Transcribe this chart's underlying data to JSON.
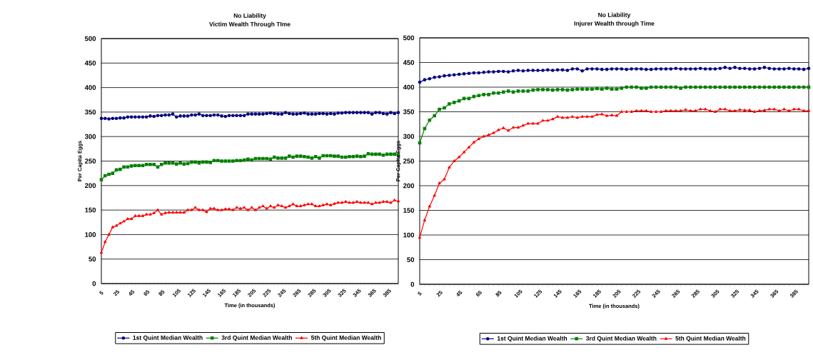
{
  "chart_data": [
    {
      "type": "line",
      "title": "No Liability",
      "subtitle": "Victim Wealth Through TIme",
      "xlabel": "Time (in thousands)",
      "ylabel": "Per Capita Eggs",
      "categories": [
        "5",
        null,
        null,
        null,
        "25",
        null,
        null,
        null,
        "45",
        null,
        null,
        null,
        "65",
        null,
        null,
        null,
        "85",
        null,
        null,
        null,
        "105",
        null,
        null,
        null,
        "125",
        null,
        null,
        null,
        "145",
        null,
        null,
        null,
        "165",
        null,
        null,
        null,
        "185",
        null,
        null,
        null,
        "205",
        null,
        null,
        null,
        "225",
        null,
        null,
        null,
        "245",
        null,
        null,
        null,
        "265",
        null,
        null,
        null,
        "285",
        null,
        null,
        null,
        "305",
        null,
        null,
        null,
        "325",
        null,
        null,
        null,
        "345",
        null,
        null,
        null,
        "365",
        null,
        null,
        null,
        "385",
        null,
        null,
        null
      ],
      "ylim": [
        0,
        500
      ],
      "yticks": [
        0,
        50,
        100,
        150,
        200,
        250,
        300,
        350,
        400,
        450,
        500
      ],
      "grid": "y",
      "legend": "bottom",
      "series": [
        {
          "name": "1st Quint Median Wealth",
          "color": "#000080",
          "marker": "circle",
          "values": [
            337,
            337,
            336,
            337,
            337,
            338,
            338,
            340,
            340,
            340,
            340,
            340,
            340,
            342,
            341,
            343,
            343,
            344,
            344,
            346,
            340,
            342,
            342,
            342,
            344,
            344,
            346,
            343,
            343,
            343,
            344,
            344,
            342,
            341,
            343,
            343,
            343,
            343,
            343,
            346,
            346,
            346,
            346,
            346,
            347,
            348,
            347,
            346,
            346,
            349,
            347,
            346,
            346,
            347,
            348,
            346,
            346,
            346,
            347,
            347,
            346,
            347,
            346,
            348,
            348,
            349,
            349,
            349,
            349,
            349,
            349,
            349,
            346,
            349,
            349,
            347,
            346,
            349,
            347,
            349
          ]
        },
        {
          "name": "3rd Quint Median Wealth",
          "color": "#008000",
          "marker": "square",
          "values": [
            212,
            220,
            223,
            225,
            232,
            233,
            238,
            238,
            240,
            241,
            241,
            241,
            243,
            243,
            243,
            238,
            243,
            246,
            246,
            246,
            244,
            246,
            244,
            245,
            248,
            248,
            246,
            248,
            248,
            247,
            251,
            251,
            250,
            250,
            250,
            250,
            251,
            251,
            252,
            254,
            252,
            255,
            255,
            255,
            255,
            254,
            258,
            256,
            256,
            256,
            260,
            258,
            260,
            260,
            259,
            258,
            256,
            259,
            256,
            261,
            261,
            261,
            260,
            260,
            258,
            258,
            259,
            259,
            260,
            259,
            260,
            265,
            264,
            264,
            264,
            262,
            264,
            264,
            264,
            262
          ]
        },
        {
          "name": "5th Quint Median Wealth",
          "color": "#ff0000",
          "marker": "triangle",
          "values": [
            63,
            85,
            100,
            115,
            118,
            123,
            127,
            132,
            132,
            138,
            138,
            138,
            141,
            141,
            144,
            150,
            141,
            144,
            145,
            145,
            145,
            145,
            145,
            150,
            150,
            155,
            150,
            150,
            146,
            153,
            153,
            150,
            150,
            152,
            152,
            150,
            155,
            153,
            155,
            150,
            155,
            150,
            155,
            158,
            153,
            158,
            155,
            160,
            158,
            155,
            158,
            162,
            158,
            158,
            160,
            162,
            162,
            158,
            158,
            160,
            162,
            160,
            163,
            165,
            165,
            167,
            165,
            165,
            167,
            165,
            165,
            165,
            162,
            165,
            165,
            167,
            167,
            165,
            170,
            168
          ]
        }
      ]
    },
    {
      "type": "line",
      "title": "No Liability",
      "subtitle": "Injurer Wealth through Time",
      "xlabel": "Time (in thousands)",
      "ylabel": "Per Capita Eggs",
      "categories": [
        "5",
        null,
        null,
        null,
        "25",
        null,
        null,
        null,
        "45",
        null,
        null,
        null,
        "65",
        null,
        null,
        null,
        "85",
        null,
        null,
        null,
        "105",
        null,
        null,
        null,
        "125",
        null,
        null,
        null,
        "145",
        null,
        null,
        null,
        "165",
        null,
        null,
        null,
        "185",
        null,
        null,
        null,
        "205",
        null,
        null,
        null,
        "225",
        null,
        null,
        null,
        "245",
        null,
        null,
        null,
        "265",
        null,
        null,
        null,
        "285",
        null,
        null,
        null,
        "305",
        null,
        null,
        null,
        "325",
        null,
        null,
        null,
        "345",
        null,
        null,
        null,
        "365",
        null,
        null,
        null,
        "385",
        null,
        null,
        null
      ],
      "ylim": [
        0,
        500
      ],
      "yticks": [
        0,
        50,
        100,
        150,
        200,
        250,
        300,
        350,
        400,
        450,
        500
      ],
      "grid": "y",
      "legend": "bottom",
      "series": [
        {
          "name": "1st Quint Median Wealth",
          "color": "#000080",
          "marker": "circle",
          "values": [
            410,
            415,
            417,
            420,
            421,
            423,
            424,
            425,
            426,
            427,
            428,
            429,
            429,
            430,
            431,
            431,
            432,
            432,
            431,
            433,
            434,
            433,
            434,
            434,
            434,
            434,
            435,
            434,
            435,
            435,
            434,
            437,
            437,
            433,
            437,
            437,
            437,
            436,
            436,
            437,
            437,
            437,
            436,
            437,
            437,
            437,
            436,
            436,
            437,
            437,
            437,
            437,
            438,
            437,
            437,
            437,
            437,
            438,
            437,
            437,
            437,
            438,
            440,
            438,
            440,
            438,
            438,
            437,
            437,
            438,
            440,
            438,
            437,
            437,
            437,
            438,
            437,
            437,
            436,
            438
          ]
        },
        {
          "name": "3rd Quint Median Wealth",
          "color": "#008000",
          "marker": "square",
          "values": [
            287,
            316,
            333,
            342,
            355,
            358,
            366,
            369,
            372,
            377,
            377,
            381,
            383,
            385,
            385,
            388,
            388,
            390,
            392,
            390,
            392,
            392,
            392,
            394,
            395,
            395,
            395,
            394,
            395,
            395,
            394,
            395,
            396,
            396,
            396,
            396,
            397,
            396,
            398,
            396,
            396,
            398,
            400,
            400,
            400,
            398,
            398,
            400,
            400,
            400,
            400,
            400,
            400,
            398,
            400,
            400,
            400,
            400,
            400,
            400,
            400,
            400,
            400,
            400,
            400,
            400,
            400,
            400,
            400,
            400,
            400,
            400,
            400,
            400,
            400,
            400,
            400,
            400,
            400,
            400
          ]
        },
        {
          "name": "5th Quint Median Wealth",
          "color": "#ff0000",
          "marker": "triangle",
          "values": [
            95,
            130,
            158,
            180,
            205,
            213,
            237,
            250,
            258,
            268,
            278,
            288,
            295,
            300,
            303,
            307,
            313,
            317,
            312,
            318,
            318,
            322,
            326,
            326,
            326,
            332,
            332,
            335,
            340,
            338,
            338,
            340,
            338,
            340,
            340,
            340,
            344,
            345,
            342,
            343,
            342,
            350,
            350,
            350,
            352,
            352,
            352,
            350,
            350,
            350,
            352,
            352,
            352,
            352,
            354,
            352,
            352,
            355,
            355,
            352,
            350,
            355,
            355,
            352,
            352,
            354,
            353,
            353,
            350,
            352,
            353,
            355,
            355,
            352,
            355,
            352,
            355,
            355,
            352,
            352
          ]
        }
      ]
    }
  ]
}
